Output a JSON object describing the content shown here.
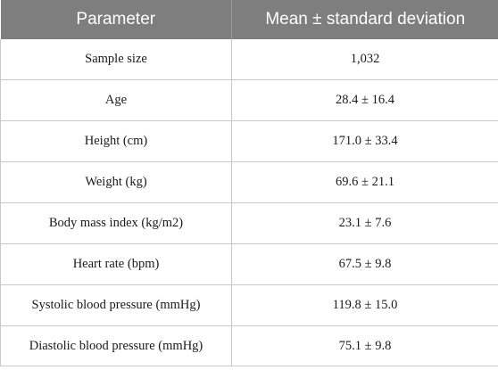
{
  "table": {
    "headers": {
      "parameter": "Parameter",
      "mean_sd": "Mean ± standard deviation"
    },
    "rows": [
      {
        "parameter": "Sample size",
        "value": "1,032"
      },
      {
        "parameter": "Age",
        "value": "28.4 ± 16.4"
      },
      {
        "parameter": "Height (cm)",
        "value": "171.0 ± 33.4"
      },
      {
        "parameter": "Weight (kg)",
        "value": "69.6 ± 21.1"
      },
      {
        "parameter": "Body mass index (kg/m2)",
        "value": "23.1 ± 7.6"
      },
      {
        "parameter": "Heart rate (bpm)",
        "value": "67.5 ± 9.8"
      },
      {
        "parameter": "Systolic blood pressure (mmHg)",
        "value": "119.8 ± 15.0"
      },
      {
        "parameter": "Diastolic blood pressure (mmHg)",
        "value": "75.1 ± 9.8"
      }
    ]
  }
}
